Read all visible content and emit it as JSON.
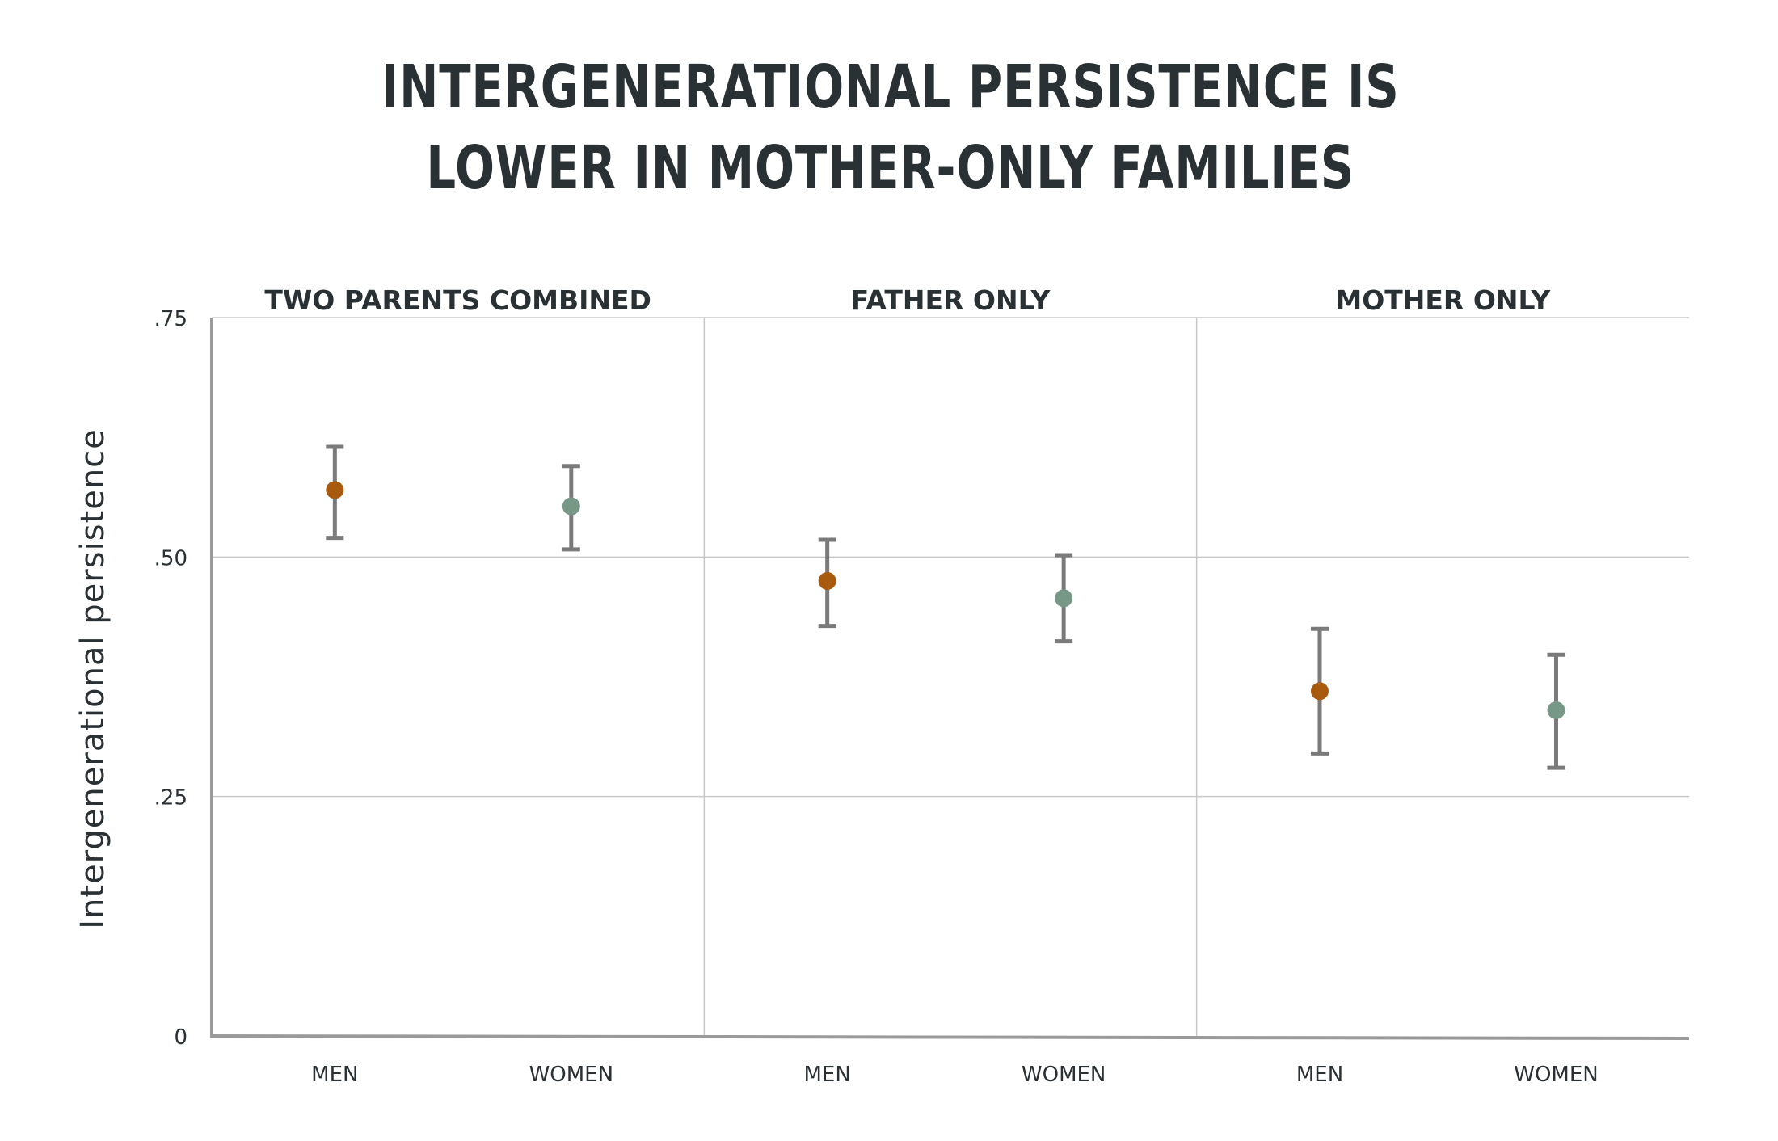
{
  "chart_data": {
    "type": "scatter",
    "title_lines": [
      "INTERGENERATIONAL PERSISTENCE IS",
      "LOWER IN MOTHER-ONLY FAMILIES"
    ],
    "ylabel": "Intergenerational persistence",
    "ylim": [
      0,
      0.75
    ],
    "yticks": [
      {
        "value": 0,
        "label": "0"
      },
      {
        "value": 0.25,
        "label": ".25"
      },
      {
        "value": 0.5,
        "label": ".50"
      },
      {
        "value": 0.75,
        "label": ".75"
      }
    ],
    "grid": true,
    "colors": {
      "men": "#a85a0f",
      "women": "#779886",
      "error_bar": "#7a7a7a",
      "grid": "#c8c8c8",
      "axis": "#9a9a9a"
    },
    "panels": [
      {
        "title": "TWO PARENTS COMBINED",
        "points": [
          {
            "label": "MEN",
            "group": "men",
            "value": 0.57,
            "low": 0.52,
            "high": 0.615
          },
          {
            "label": "WOMEN",
            "group": "women",
            "value": 0.553,
            "low": 0.508,
            "high": 0.595
          }
        ]
      },
      {
        "title": "FATHER ONLY",
        "points": [
          {
            "label": "MEN",
            "group": "men",
            "value": 0.475,
            "low": 0.428,
            "high": 0.518
          },
          {
            "label": "WOMEN",
            "group": "women",
            "value": 0.457,
            "low": 0.412,
            "high": 0.502
          }
        ]
      },
      {
        "title": "MOTHER ONLY",
        "points": [
          {
            "label": "MEN",
            "group": "men",
            "value": 0.36,
            "low": 0.295,
            "high": 0.425
          },
          {
            "label": "WOMEN",
            "group": "women",
            "value": 0.34,
            "low": 0.28,
            "high": 0.398
          }
        ]
      }
    ]
  }
}
